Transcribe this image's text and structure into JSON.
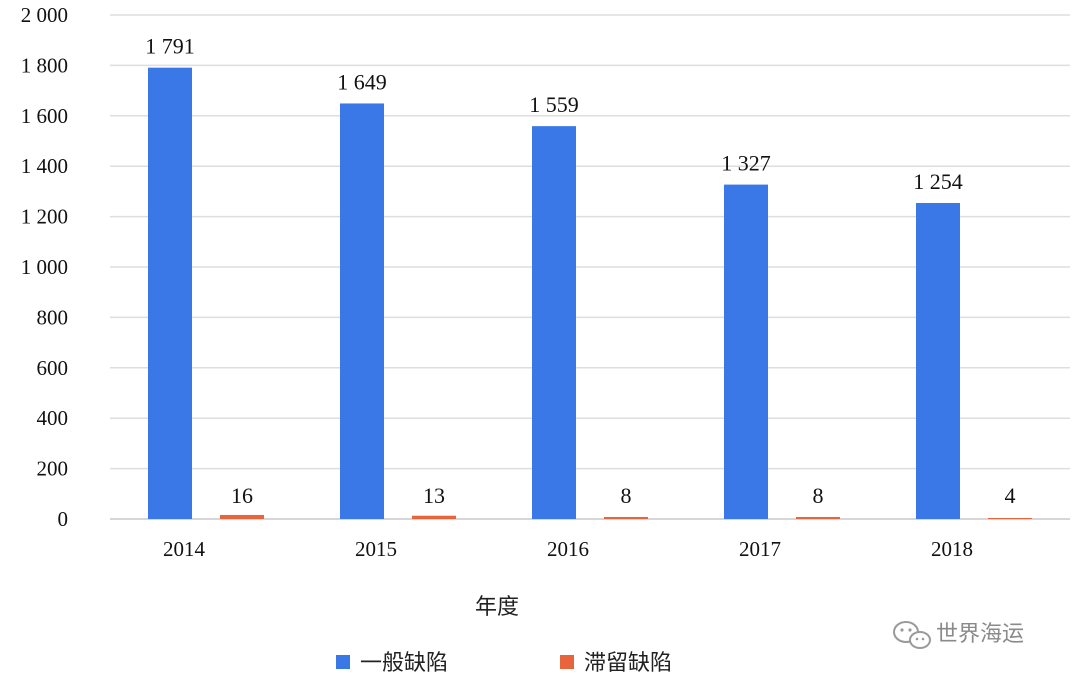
{
  "chart_data": {
    "type": "bar",
    "categories": [
      "2014",
      "2015",
      "2016",
      "2017",
      "2018"
    ],
    "series": [
      {
        "name": "一般缺陷",
        "color": "#3b78e7",
        "values": [
          1791,
          1649,
          1559,
          1327,
          1254
        ],
        "labels": [
          "1 791",
          "1 649",
          "1 559",
          "1 327",
          "1 254"
        ]
      },
      {
        "name": "滞留缺陷",
        "color": "#e8643c",
        "values": [
          16,
          13,
          8,
          8,
          4
        ],
        "labels": [
          "16",
          "13",
          "8",
          "8",
          "4"
        ]
      }
    ],
    "xlabel": "年度",
    "ylabel": "",
    "ylim": [
      0,
      2000
    ],
    "yticks": [
      0,
      200,
      400,
      600,
      800,
      1000,
      1200,
      1400,
      1600,
      1800,
      2000
    ],
    "ytick_labels": [
      "0",
      "200",
      "400",
      "600",
      "800",
      "1 000",
      "1 200",
      "1 400",
      "1 600",
      "1 800",
      "2 000"
    ],
    "grid": true,
    "legend_position": "bottom"
  },
  "watermark": {
    "icon": "wechat-icon",
    "text": "世界海运"
  }
}
